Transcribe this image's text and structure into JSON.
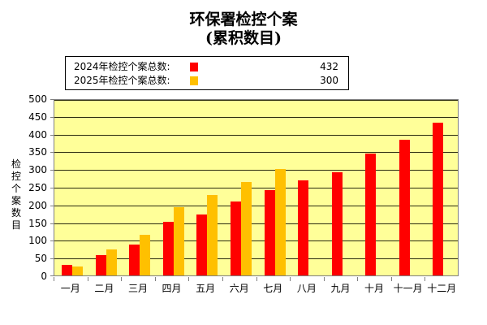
{
  "chart_data": {
    "type": "bar",
    "title": "环保署检控个案",
    "subtitle": "(累积数目)",
    "xlabel": "",
    "ylabel": "检控个案数目",
    "ylim": [
      0,
      500
    ],
    "yticks": [
      0,
      50,
      100,
      150,
      200,
      250,
      300,
      350,
      400,
      450,
      500
    ],
    "grid": true,
    "legend_position": "top",
    "categories": [
      "一月",
      "二月",
      "三月",
      "四月",
      "五月",
      "六月",
      "七月",
      "八月",
      "九月",
      "十月",
      "十一月",
      "十二月"
    ],
    "series": [
      {
        "name": "2024年检控个案总数",
        "color": "#ff0000",
        "total": 432,
        "values": [
          30,
          58,
          88,
          151,
          171,
          209,
          241,
          268,
          292,
          345,
          384,
          432
        ]
      },
      {
        "name": "2025年检控个案总数",
        "color": "#ffc000",
        "total": 300,
        "values": [
          25,
          74,
          114,
          192,
          228,
          264,
          300,
          null,
          null,
          null,
          null,
          null
        ]
      }
    ]
  },
  "legend": {
    "items": [
      {
        "label": "2024年检控个案总数:",
        "value": "432",
        "color": "#ff0000"
      },
      {
        "label": "2025年检控个案总数:",
        "value": "300",
        "color": "#ffc000"
      }
    ]
  },
  "colors": {
    "plot_bg": "#ffff99",
    "gridline": "#2b2b10"
  }
}
